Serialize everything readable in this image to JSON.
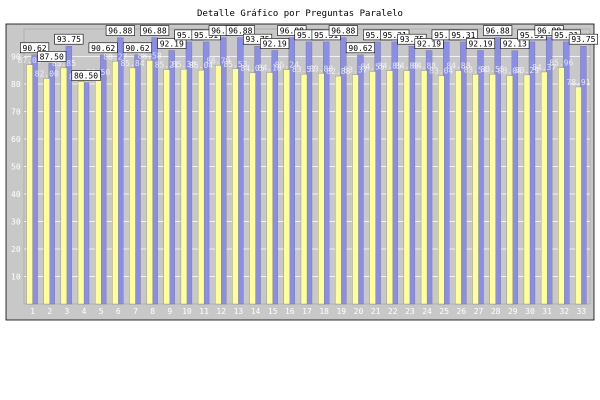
{
  "chart_data": {
    "type": "bar",
    "title": "Detalle Gráfico por Preguntas Paralelo",
    "xlabel": "",
    "ylabel": "",
    "ylim": [
      0,
      100
    ],
    "yticks": [
      10,
      20,
      30,
      40,
      50,
      60,
      70,
      80,
      90
    ],
    "grid": true,
    "categories": [
      "1",
      "2",
      "3",
      "4",
      "5",
      "6",
      "7",
      "8",
      "9",
      "10",
      "11",
      "12",
      "13",
      "14",
      "15",
      "16",
      "17",
      "18",
      "19",
      "20",
      "21",
      "22",
      "23",
      "24",
      "25",
      "26",
      "27",
      "28",
      "29",
      "30",
      "31",
      "32",
      "33"
    ],
    "series": [
      {
        "values": [
          90.62,
          87.5,
          93.75,
          80.5,
          90.62,
          96.88,
          90.62,
          96.88,
          92.19,
          95.31,
          95.31,
          96.88,
          96.88,
          93.75,
          92.19,
          96.88,
          95.31,
          95.31,
          96.88,
          90.62,
          95.31,
          95.31,
          93.75,
          92.19,
          95.31,
          95.31,
          92.19,
          96.88,
          92.13,
          95.31,
          96.88,
          95.31,
          93.75
        ]
      },
      {
        "values": [
          87.0,
          82.0,
          85.85,
          80.83,
          82.5,
          88.27,
          85.84,
          88.58,
          85.21,
          85.38,
          85.04,
          86.79,
          85.53,
          84.05,
          84.18,
          85.24,
          83.57,
          83.88,
          82.88,
          83.37,
          84.55,
          84.85,
          84.88,
          84.88,
          83.04,
          84.88,
          83.54,
          83.55,
          83.04,
          83.29,
          84.37,
          85.96,
          78.91
        ]
      }
    ],
    "colors": {
      "panel": "#c8c8c8",
      "grid": "#ffffff",
      "bar_a": "#8a8ee8",
      "bar_b": "#ffff99",
      "bar_edge": "#6b6b6b",
      "label_box": "#ffffff"
    }
  }
}
